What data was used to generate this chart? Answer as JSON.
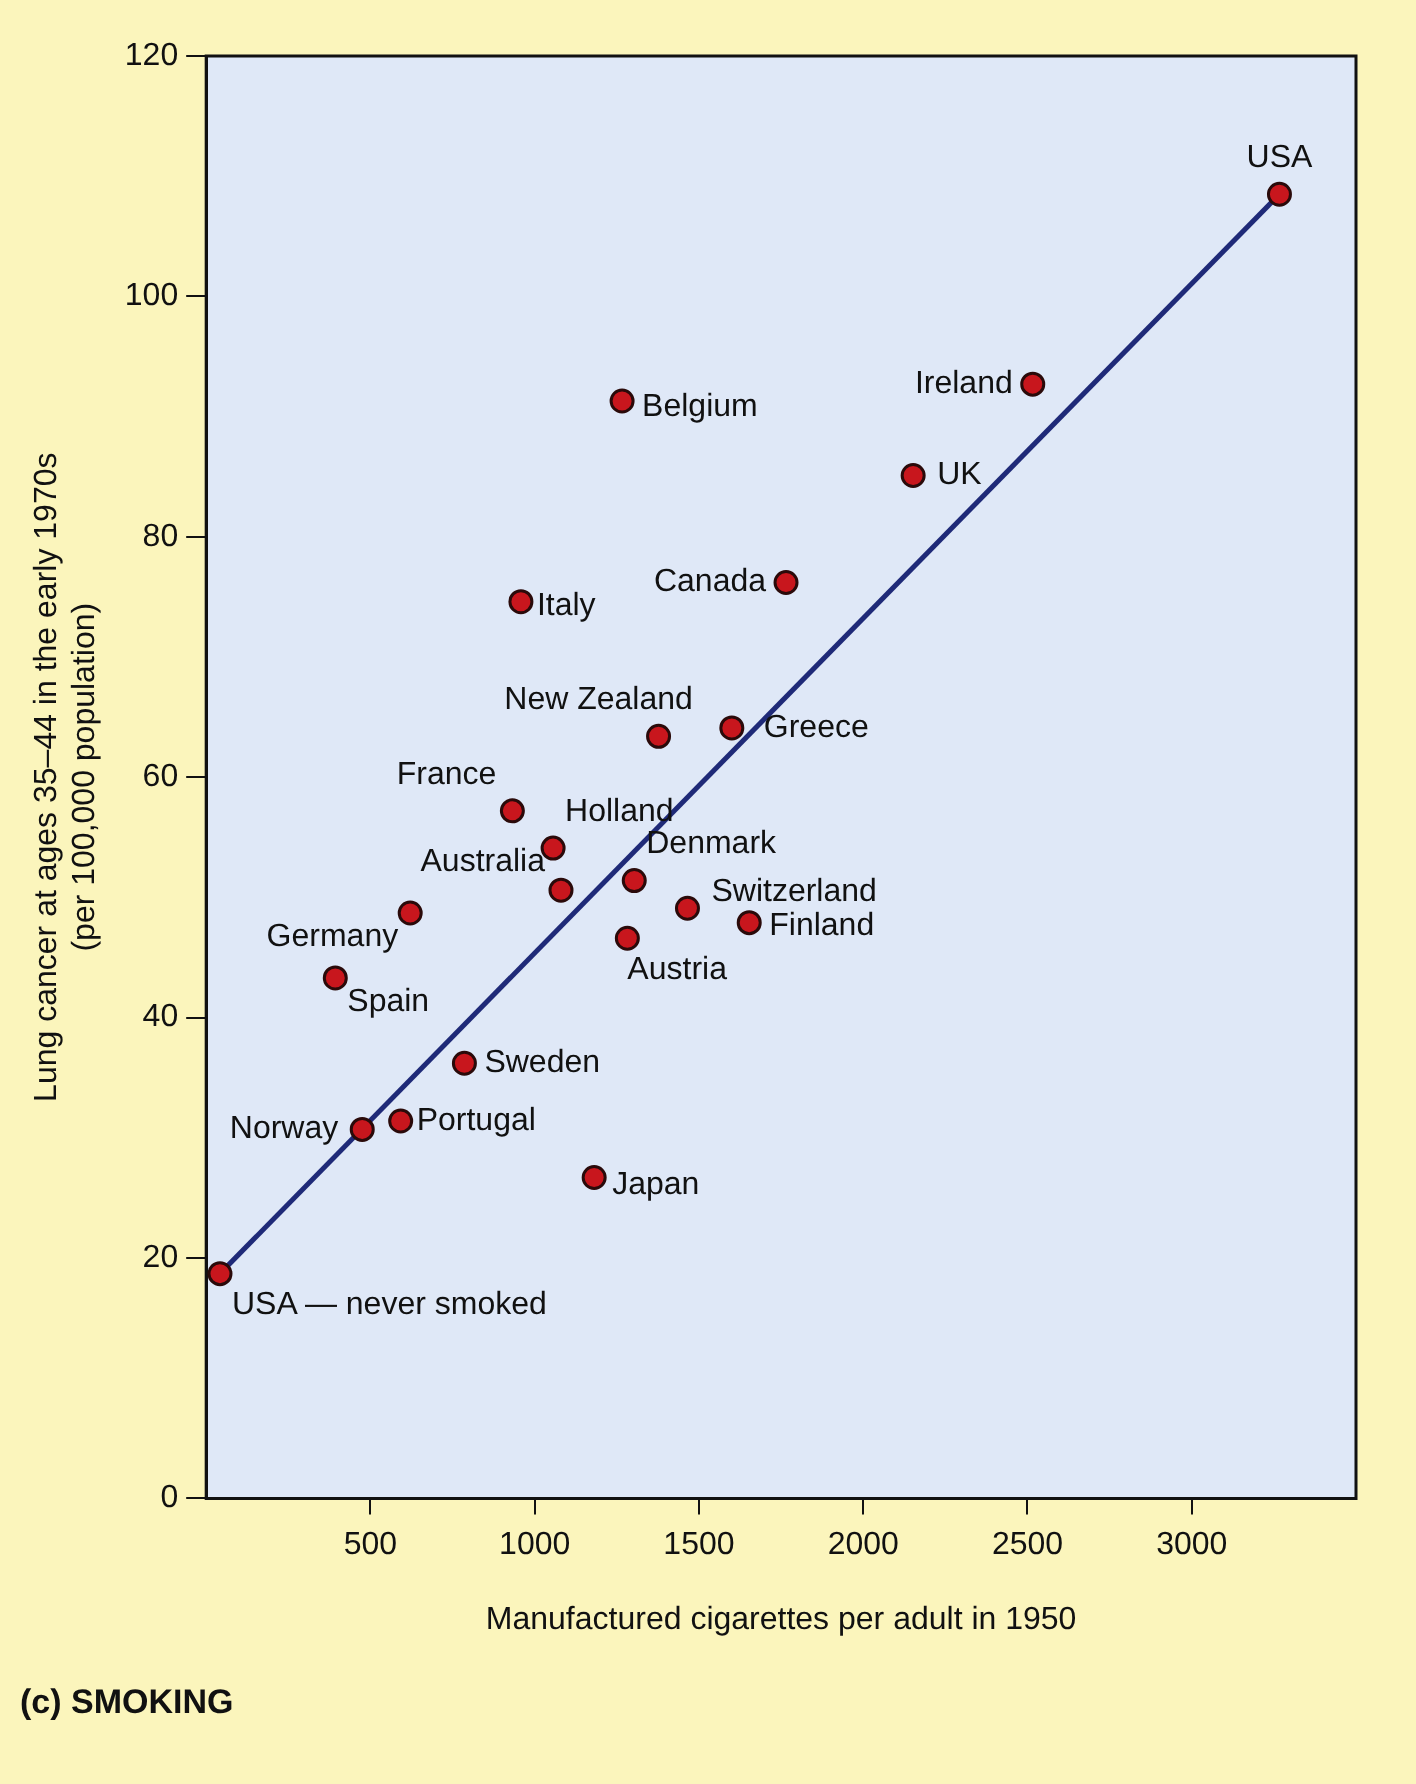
{
  "chart_data": {
    "type": "scatter",
    "title": "(c) SMOKING",
    "xlabel": "Manufactured cigarettes per adult in 1950",
    "ylabel": "Lung cancer at ages 35–44 in the early 1970s\n(per 100,000 population)",
    "xlim": [
      0,
      3500
    ],
    "xticks": [
      500,
      1000,
      1500,
      2000,
      2500,
      3000
    ],
    "ylim": [
      0,
      120
    ],
    "yticks": [
      0,
      20,
      40,
      60,
      80,
      100,
      120
    ],
    "grid": false,
    "legend": false,
    "series": [
      {
        "color": "#c8161d",
        "marker": "circle",
        "x": [
          3267,
          1266,
          2516,
          2152,
          958,
          1765,
          1377,
          1600,
          932,
          1056,
          1080,
          621,
          393,
          1303,
          1465,
          1653,
          1282,
          786,
          592,
          475,
          1181,
          42
        ],
        "values": [
          108.5,
          91.3,
          92.7,
          85.1,
          74.6,
          76.2,
          63.4,
          64.1,
          57.2,
          54.1,
          50.6,
          48.7,
          43.3,
          51.4,
          49.1,
          47.9,
          46.6,
          36.2,
          31.4,
          30.7,
          26.7,
          18.7
        ]
      },
      {
        "type": "line",
        "color": "#1f2a78",
        "line_style": "solid",
        "x": [
          42,
          3267
        ],
        "values": [
          18.7,
          108.5
        ]
      }
    ],
    "annotations": [
      {
        "text": "USA",
        "x": 3267,
        "y": 108.5
      },
      {
        "text": "Belgium",
        "x": 1266,
        "y": 91.3
      },
      {
        "text": "Ireland",
        "x": 2516,
        "y": 92.7
      },
      {
        "text": "UK",
        "x": 2152,
        "y": 85.1
      },
      {
        "text": "Italy",
        "x": 958,
        "y": 74.6
      },
      {
        "text": "Canada",
        "x": 1765,
        "y": 76.2
      },
      {
        "text": "New Zealand",
        "x": 1377,
        "y": 63.4
      },
      {
        "text": "Greece",
        "x": 1600,
        "y": 64.1
      },
      {
        "text": "France",
        "x": 932,
        "y": 57.2
      },
      {
        "text": "Holland",
        "x": 1056,
        "y": 54.1
      },
      {
        "text": "Australia",
        "x": 1080,
        "y": 50.6
      },
      {
        "text": "Germany",
        "x": 621,
        "y": 48.7
      },
      {
        "text": "Spain",
        "x": 393,
        "y": 43.3
      },
      {
        "text": "Denmark",
        "x": 1303,
        "y": 51.4
      },
      {
        "text": "Switzerland",
        "x": 1465,
        "y": 49.1
      },
      {
        "text": "Finland",
        "x": 1653,
        "y": 47.9
      },
      {
        "text": "Austria",
        "x": 1282,
        "y": 46.6
      },
      {
        "text": "Sweden",
        "x": 786,
        "y": 36.2
      },
      {
        "text": "Portugal",
        "x": 592,
        "y": 31.4
      },
      {
        "text": "Norway",
        "x": 475,
        "y": 30.7
      },
      {
        "text": "Japan",
        "x": 1181,
        "y": 26.7
      },
      {
        "text": "USA — never smoked",
        "x": 42,
        "y": 18.7
      }
    ]
  }
}
